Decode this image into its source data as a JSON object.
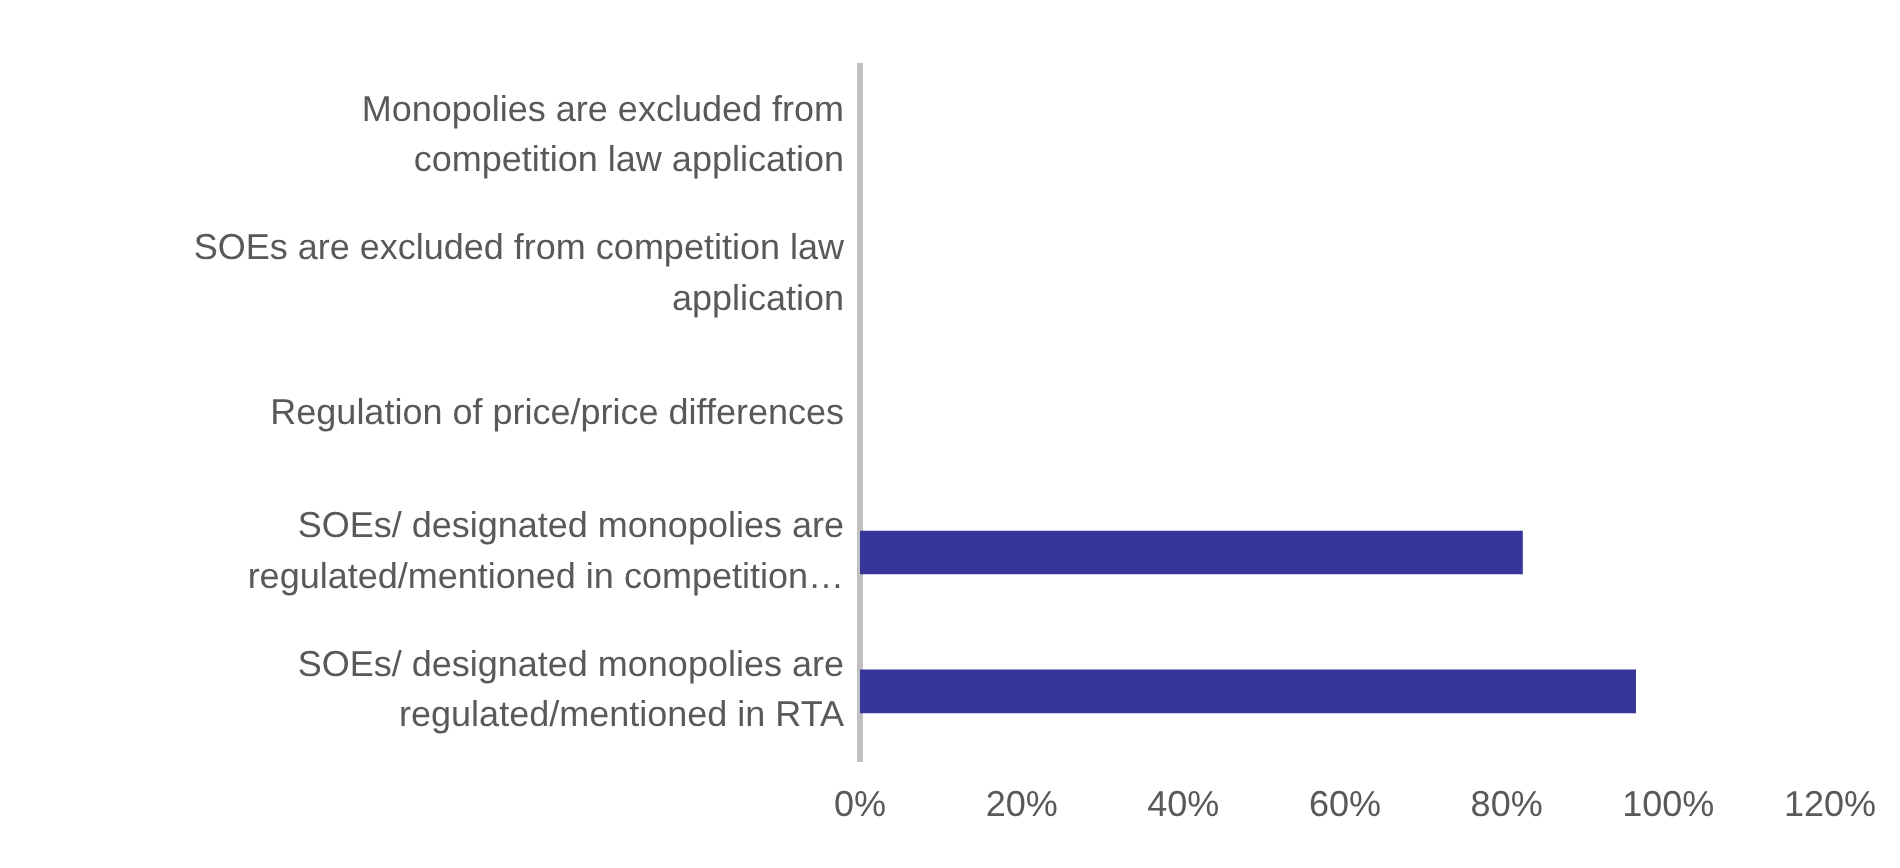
{
  "chart_data": {
    "type": "bar",
    "orientation": "horizontal",
    "categories": [
      "Monopolies are excluded from competition law application",
      "SOEs are excluded from competition law application",
      "Regulation of price/price differences",
      "SOEs/ designated monopolies are regulated/mentioned in competition…",
      "SOEs/ designated monopolies are regulated/mentioned in RTA"
    ],
    "values": [
      0,
      0,
      0,
      82,
      96
    ],
    "color": "#35359a",
    "xlim": [
      0,
      120
    ],
    "xticks": [
      {
        "value": 0,
        "label": "0%"
      },
      {
        "value": 20,
        "label": "20%"
      },
      {
        "value": 40,
        "label": "40%"
      },
      {
        "value": 60,
        "label": "60%"
      },
      {
        "value": 80,
        "label": "80%"
      },
      {
        "value": 100,
        "label": "100%"
      },
      {
        "value": 120,
        "label": "120%"
      }
    ],
    "grid": false,
    "legend": false
  }
}
